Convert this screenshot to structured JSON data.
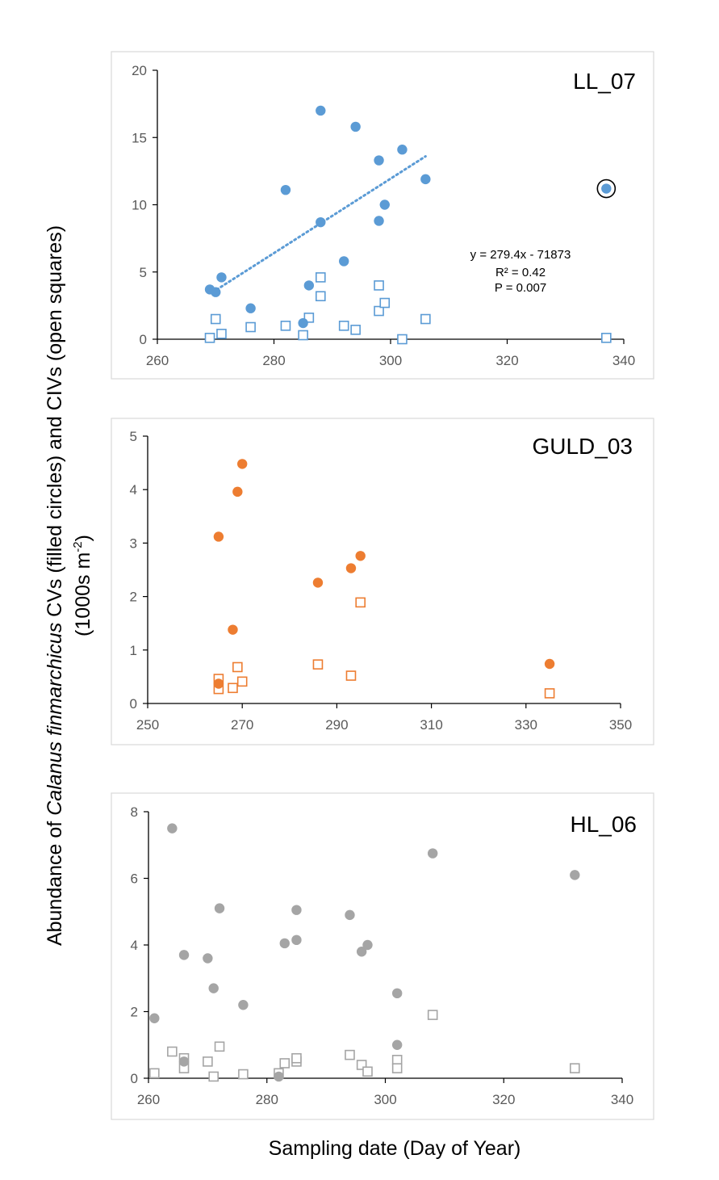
{
  "figure": {
    "ylabel_line1_a": "Abundance of ",
    "ylabel_line1_species": "Calanus finmarchicus",
    "ylabel_line1_b": " CVs  (filled circles) and CIVs (open squares)",
    "ylabel_line2_a": "(1000s m",
    "ylabel_line2_sup": "-2",
    "ylabel_line2_b": ")",
    "xlabel": "Sampling date (Day of Year)"
  },
  "chart_data": [
    {
      "type": "scatter",
      "panel": "LL_07",
      "color": "#5B9BD5",
      "xlim": [
        260,
        340
      ],
      "ylim": [
        0,
        20
      ],
      "xticks": [
        260,
        280,
        300,
        320,
        340
      ],
      "yticks": [
        0,
        5,
        10,
        15,
        20
      ],
      "cv": [
        [
          269,
          3.7
        ],
        [
          270,
          3.5
        ],
        [
          271,
          4.6
        ],
        [
          276,
          2.3
        ],
        [
          282,
          11.1
        ],
        [
          285,
          1.2
        ],
        [
          286,
          4.0
        ],
        [
          288,
          17.0
        ],
        [
          288,
          8.7
        ],
        [
          292,
          5.8
        ],
        [
          294,
          15.8
        ],
        [
          298,
          13.3
        ],
        [
          298,
          8.8
        ],
        [
          299,
          10.0
        ],
        [
          302,
          14.1
        ],
        [
          306,
          11.9
        ],
        [
          337,
          11.2
        ]
      ],
      "civ": [
        [
          269,
          0.1
        ],
        [
          270,
          1.5
        ],
        [
          271,
          0.4
        ],
        [
          276,
          0.9
        ],
        [
          282,
          1.0
        ],
        [
          285,
          0.3
        ],
        [
          286,
          1.6
        ],
        [
          288,
          4.6
        ],
        [
          288,
          3.2
        ],
        [
          292,
          1.0
        ],
        [
          294,
          0.7
        ],
        [
          298,
          4.0
        ],
        [
          298,
          2.1
        ],
        [
          299,
          2.7
        ],
        [
          302,
          0.0
        ],
        [
          306,
          1.5
        ],
        [
          337,
          0.1
        ]
      ],
      "circled_point": [
        337,
        11.2
      ],
      "trendline": {
        "x": [
          269.5,
          306
        ],
        "y": [
          3.5,
          13.6
        ],
        "style": "dotted"
      },
      "annotation": [
        "y = 279.4x - 71873",
        "R² = 0.42",
        "P = 0.007"
      ]
    },
    {
      "type": "scatter",
      "panel": "GULD_03",
      "color": "#ED7D31",
      "xlim": [
        250,
        350
      ],
      "ylim": [
        0,
        5
      ],
      "xticks": [
        250,
        270,
        290,
        310,
        330,
        350
      ],
      "yticks": [
        0,
        1,
        2,
        3,
        4,
        5
      ],
      "cv": [
        [
          265,
          3.12
        ],
        [
          265,
          0.37
        ],
        [
          268,
          1.38
        ],
        [
          269,
          3.96
        ],
        [
          270,
          4.48
        ],
        [
          286,
          2.26
        ],
        [
          293,
          2.53
        ],
        [
          295,
          2.76
        ],
        [
          335,
          0.74
        ]
      ],
      "civ": [
        [
          265,
          0.46
        ],
        [
          265,
          0.27
        ],
        [
          268,
          0.29
        ],
        [
          269,
          0.68
        ],
        [
          270,
          0.41
        ],
        [
          286,
          0.73
        ],
        [
          293,
          0.52
        ],
        [
          295,
          1.89
        ],
        [
          335,
          0.19
        ]
      ]
    },
    {
      "type": "scatter",
      "panel": "HL_06",
      "color": "#A5A5A5",
      "xlim": [
        260,
        340
      ],
      "ylim": [
        0,
        8
      ],
      "xticks": [
        260,
        280,
        300,
        320,
        340
      ],
      "yticks": [
        0,
        2,
        4,
        6,
        8
      ],
      "cv": [
        [
          261,
          1.8
        ],
        [
          264,
          7.5
        ],
        [
          266,
          3.7
        ],
        [
          266,
          0.5
        ],
        [
          270,
          3.6
        ],
        [
          271,
          2.7
        ],
        [
          272,
          5.1
        ],
        [
          276,
          2.2
        ],
        [
          282,
          0.05
        ],
        [
          283,
          4.05
        ],
        [
          285,
          4.15
        ],
        [
          285,
          5.05
        ],
        [
          294,
          4.9
        ],
        [
          296,
          3.8
        ],
        [
          297,
          4.0
        ],
        [
          302,
          2.55
        ],
        [
          302,
          1.0
        ],
        [
          308,
          6.75
        ],
        [
          332,
          6.1
        ]
      ],
      "civ": [
        [
          261,
          0.15
        ],
        [
          264,
          0.8
        ],
        [
          266,
          0.6
        ],
        [
          266,
          0.3
        ],
        [
          270,
          0.5
        ],
        [
          271,
          0.05
        ],
        [
          272,
          0.95
        ],
        [
          276,
          0.12
        ],
        [
          282,
          0.15
        ],
        [
          283,
          0.45
        ],
        [
          285,
          0.5
        ],
        [
          285,
          0.6
        ],
        [
          294,
          0.7
        ],
        [
          296,
          0.4
        ],
        [
          297,
          0.2
        ],
        [
          302,
          0.55
        ],
        [
          302,
          0.3
        ],
        [
          308,
          1.9
        ],
        [
          332,
          0.3
        ]
      ]
    }
  ]
}
